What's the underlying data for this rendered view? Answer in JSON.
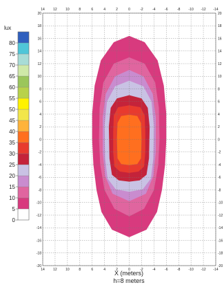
{
  "chart_data": {
    "type": "heatmap",
    "title": "",
    "xlabel": "X (meters)",
    "subtitle": "h=8 meters",
    "x_ticks": [
      14,
      12,
      10,
      8,
      6,
      4,
      2,
      0,
      -2,
      -4,
      -6,
      -8,
      -10,
      -12,
      -14
    ],
    "y_ticks": [
      20,
      18,
      16,
      14,
      12,
      10,
      8,
      6,
      4,
      2,
      0,
      -2,
      -4,
      -6,
      -8,
      -10,
      -12,
      -14,
      -16,
      -18,
      -20
    ],
    "xlim": [
      14,
      -14
    ],
    "ylim": [
      -20,
      20
    ],
    "grid": true,
    "legend": {
      "unit": "lux",
      "placement": "left",
      "levels": [
        0,
        5,
        10,
        15,
        20,
        25,
        30,
        35,
        40,
        45,
        50,
        55,
        60,
        65,
        70,
        75,
        80,
        85
      ],
      "labels": [
        "0",
        "5",
        "10",
        "15",
        "20",
        "25",
        "30",
        "35",
        "40",
        "45",
        "50",
        "55",
        "60",
        "65",
        "70",
        "75",
        "80"
      ],
      "colors": [
        "#ffffff",
        "#d83a7e",
        "#e0659f",
        "#c98ccf",
        "#c9c2e4",
        "#c4233a",
        "#e83a2e",
        "#ff6f1f",
        "#ffb33a",
        "#f2e64a",
        "#fff200",
        "#b8d24a",
        "#9bc65b",
        "#cfe9a8",
        "#a8dcd6",
        "#4fc6d8",
        "#2f5fbe"
      ]
    },
    "contours": [
      {
        "min_lux": 5,
        "color": "#d83a7e",
        "points": [
          [
            0,
            16.4
          ],
          [
            2.5,
            15.4
          ],
          [
            4.6,
            12.5
          ],
          [
            5.6,
            8.5
          ],
          [
            6.0,
            4
          ],
          [
            6.0,
            0
          ],
          [
            5.8,
            -4
          ],
          [
            5.3,
            -8
          ],
          [
            4.5,
            -11.5
          ],
          [
            2.8,
            -14.3
          ],
          [
            0,
            -15.5
          ],
          [
            -2.8,
            -14.3
          ],
          [
            -4.5,
            -11.5
          ],
          [
            -5.3,
            -8
          ],
          [
            -5.8,
            -4
          ],
          [
            -6.0,
            0
          ],
          [
            -6.0,
            4
          ],
          [
            -5.6,
            8.5
          ],
          [
            -4.6,
            12.5
          ],
          [
            -2.5,
            15.4
          ]
        ]
      },
      {
        "min_lux": 10,
        "color": "#e0659f",
        "points": [
          [
            0,
            13
          ],
          [
            2.5,
            12
          ],
          [
            4.2,
            9
          ],
          [
            4.8,
            5
          ],
          [
            4.9,
            0
          ],
          [
            4.7,
            -4
          ],
          [
            4.0,
            -8
          ],
          [
            2.4,
            -11
          ],
          [
            0,
            -12.2
          ],
          [
            -2.4,
            -11
          ],
          [
            -4.0,
            -8
          ],
          [
            -4.7,
            -4
          ],
          [
            -4.9,
            0
          ],
          [
            -4.8,
            5
          ],
          [
            -4.2,
            9
          ],
          [
            -2.5,
            12
          ]
        ]
      },
      {
        "min_lux": 15,
        "color": "#c98ccf",
        "points": [
          [
            0,
            11
          ],
          [
            2.3,
            10
          ],
          [
            3.8,
            7.2
          ],
          [
            4.3,
            3.5
          ],
          [
            4.3,
            -2
          ],
          [
            3.9,
            -5.8
          ],
          [
            2.7,
            -8.6
          ],
          [
            0,
            -9.8
          ],
          [
            -2.7,
            -8.6
          ],
          [
            -3.9,
            -5.8
          ],
          [
            -4.3,
            -2
          ],
          [
            -4.3,
            3.5
          ],
          [
            -3.8,
            7.2
          ],
          [
            -2.3,
            10
          ]
        ]
      },
      {
        "min_lux": 20,
        "color": "#c9c2e4",
        "points": [
          [
            0,
            9.3
          ],
          [
            2.3,
            8.4
          ],
          [
            3.6,
            6
          ],
          [
            4.0,
            2
          ],
          [
            3.9,
            -3
          ],
          [
            3.5,
            -6.2
          ],
          [
            2.2,
            -7.9
          ],
          [
            0,
            -8.3
          ],
          [
            -2.2,
            -7.9
          ],
          [
            -3.5,
            -6.2
          ],
          [
            -3.9,
            -3
          ],
          [
            -4.0,
            2
          ],
          [
            -3.6,
            6
          ],
          [
            -2.3,
            8.4
          ]
        ]
      },
      {
        "min_lux": 25,
        "color": "#c4233a",
        "points": [
          [
            0,
            7
          ],
          [
            2.0,
            6.5
          ],
          [
            3.0,
            5
          ],
          [
            3.3,
            2
          ],
          [
            3.2,
            -3
          ],
          [
            2.8,
            -5.6
          ],
          [
            1.7,
            -6.5
          ],
          [
            0,
            -6.7
          ],
          [
            -1.7,
            -6.5
          ],
          [
            -2.8,
            -5.6
          ],
          [
            -3.2,
            -3
          ],
          [
            -3.3,
            2
          ],
          [
            -3.0,
            5
          ],
          [
            -2.0,
            6.5
          ]
        ]
      },
      {
        "min_lux": 30,
        "color": "#e83a2e",
        "points": [
          [
            0,
            5.4
          ],
          [
            1.8,
            5.1
          ],
          [
            2.5,
            3.8
          ],
          [
            2.6,
            1
          ],
          [
            2.6,
            -2
          ],
          [
            2.4,
            -4.3
          ],
          [
            1.5,
            -5.1
          ],
          [
            0,
            -5.3
          ],
          [
            -1.5,
            -5.1
          ],
          [
            -2.4,
            -4.3
          ],
          [
            -2.6,
            -2
          ],
          [
            -2.6,
            1
          ],
          [
            -2.5,
            3.8
          ],
          [
            -1.8,
            5.1
          ]
        ]
      },
      {
        "min_lux": 35,
        "color": "#ff6f1f",
        "points": [
          [
            0,
            3.9
          ],
          [
            1.3,
            3.7
          ],
          [
            1.9,
            2.6
          ],
          [
            2.0,
            0
          ],
          [
            1.9,
            -3
          ],
          [
            1.3,
            -3.9
          ],
          [
            0,
            -4.1
          ],
          [
            -1.3,
            -3.9
          ],
          [
            -1.9,
            -3
          ],
          [
            -2.0,
            0
          ],
          [
            -1.9,
            2.6
          ],
          [
            -1.3,
            3.7
          ]
        ]
      }
    ]
  }
}
